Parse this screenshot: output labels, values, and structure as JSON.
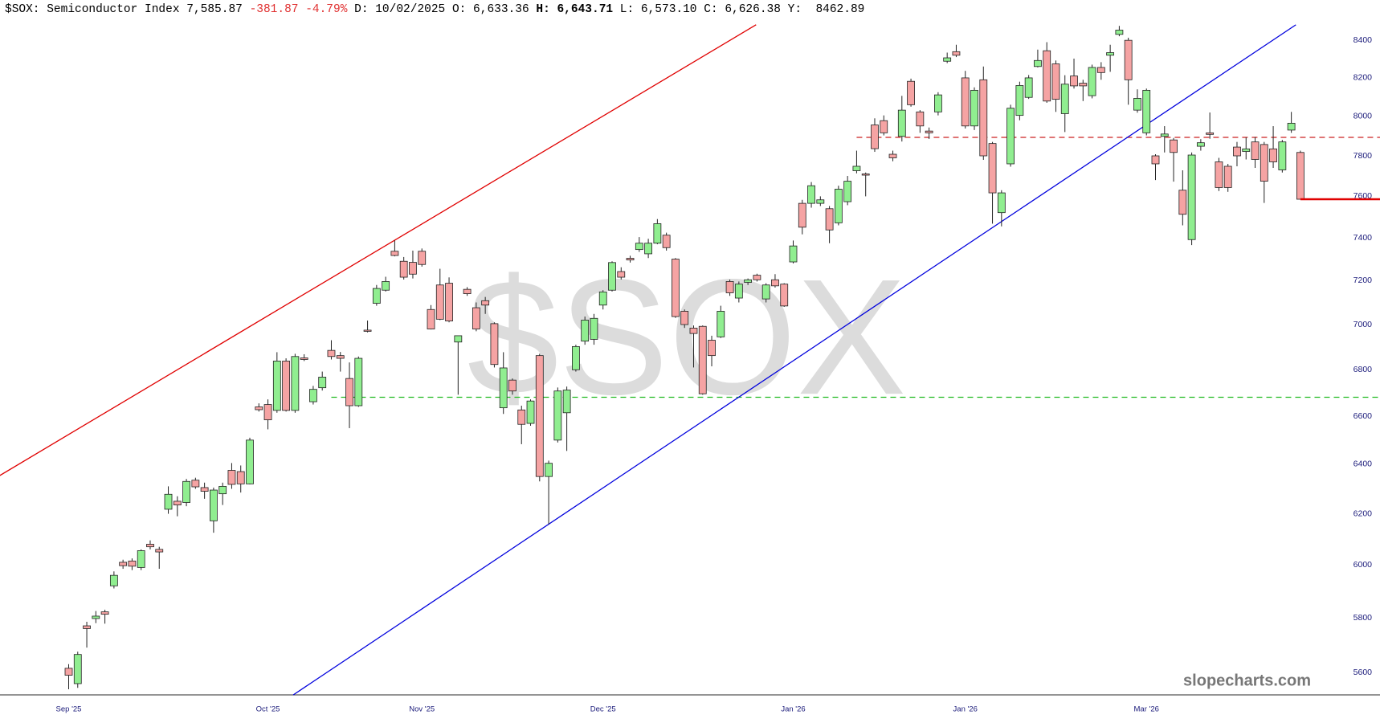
{
  "chart_data": {
    "type": "candlestick",
    "header": [
      {
        "text": "$SOX: Semiconductor Index",
        "color": "#000000",
        "bold": false
      },
      {
        "text": "7,585.87",
        "color": "#000000",
        "bold": false
      },
      {
        "text": "-381.87",
        "color": "#e03030",
        "bold": false
      },
      {
        "text": "-4.79%",
        "color": "#e03030",
        "bold": false
      },
      {
        "text": "D: 10/02/2025",
        "color": "#000000",
        "bold": false
      },
      {
        "text": "O: 6,633.36",
        "color": "#000000",
        "bold": false
      },
      {
        "text": "H: 6,643.71",
        "color": "#000000",
        "bold": true
      },
      {
        "text": "L: 6,573.10",
        "color": "#000000",
        "bold": false
      },
      {
        "text": "C: 6,626.38",
        "color": "#000000",
        "bold": false
      },
      {
        "text": "Y:  8462.89",
        "color": "#000000",
        "bold": false
      }
    ],
    "watermark": "$SOX",
    "brand": "slopecharts.com",
    "categories": [
      "Sep '25",
      null,
      null,
      null,
      null,
      null,
      null,
      null,
      null,
      null,
      null,
      null,
      null,
      null,
      null,
      null,
      null,
      null,
      null,
      null,
      null,
      null,
      "Oct '25",
      null,
      null,
      null,
      null,
      null,
      null,
      null,
      null,
      null,
      null,
      null,
      null,
      null,
      null,
      null,
      null,
      "Nov '25",
      null,
      null,
      null,
      null,
      null,
      null,
      null,
      null,
      null,
      null,
      null,
      null,
      null,
      null,
      null,
      null,
      null,
      null,
      null,
      "Dec '25",
      null,
      null,
      null,
      null,
      null,
      null,
      null,
      null,
      null,
      null,
      null,
      null,
      null,
      null,
      null,
      null,
      null,
      null,
      null,
      null,
      "Jan '26",
      null,
      null,
      null,
      null,
      null,
      null,
      null,
      null,
      null,
      null,
      null,
      null,
      null,
      null,
      null,
      null,
      null,
      null,
      "Jan '26",
      null,
      null,
      null,
      null,
      null,
      null,
      null,
      null,
      null,
      null,
      null,
      null,
      null,
      null,
      null,
      null,
      null,
      null,
      null,
      "Mar '26",
      null,
      null,
      null,
      null,
      null,
      null,
      null,
      null,
      null,
      null,
      null,
      null,
      null,
      null,
      null,
      null,
      null
    ],
    "open": [
      5615,
      5560,
      5770,
      5797,
      5822,
      5920,
      6010,
      6015,
      5990,
      6080,
      6060,
      6218,
      6250,
      6245,
      6335,
      6305,
      6172,
      6280,
      6375,
      6370,
      6320,
      6640,
      6650,
      6625,
      6838,
      6625,
      6852,
      6662,
      6722,
      6885,
      6862,
      6762,
      6645,
      6975,
      7096,
      7156,
      7337,
      7290,
      7285,
      7337,
      7068,
      7180,
      7188,
      6922,
      7160,
      7076,
      7108,
      7004,
      6636,
      6755,
      6627,
      6570,
      6862,
      6350,
      6500,
      6615,
      6800,
      6926,
      6934,
      7088,
      7156,
      7242,
      7304,
      7345,
      7325,
      7375,
      7413,
      7300,
      7060,
      6984,
      6992,
      6930,
      6945,
      7196,
      7120,
      7192,
      7225,
      7116,
      7204,
      7184,
      7287,
      7566,
      7566,
      7566,
      7540,
      7472,
      7574,
      7726,
      7710,
      7956,
      7978,
      7808,
      7898,
      8182,
      8023,
      7925,
      8023,
      8288,
      8339,
      8200,
      7951,
      8190,
      7862,
      7521,
      7760,
      8005,
      8098,
      8260,
      8344,
      8274,
      8014,
      8210,
      8172,
      8107,
      8255,
      8320,
      8432,
      8400,
      8032,
      7916,
      7800,
      7898,
      7880,
      7630,
      7392,
      7848,
      7916,
      7770,
      7748,
      7844,
      7822,
      7870,
      7857,
      7835,
      7730,
      7930,
      7817
    ],
    "high": [
      5630,
      5675,
      5785,
      5825,
      5830,
      5975,
      6020,
      6025,
      6060,
      6095,
      6070,
      6310,
      6270,
      6340,
      6345,
      6325,
      6305,
      6325,
      6405,
      6395,
      6510,
      6655,
      6672,
      6877,
      6850,
      6870,
      6868,
      6730,
      6792,
      6930,
      6878,
      6832,
      6858,
      7018,
      7180,
      7218,
      7388,
      7310,
      7340,
      7350,
      7088,
      7255,
      7215,
      6950,
      7170,
      7100,
      7125,
      7010,
      6877,
      6762,
      6645,
      6672,
      6870,
      6415,
      6723,
      6727,
      6910,
      7036,
      7048,
      7156,
      7290,
      7262,
      7316,
      7404,
      7396,
      7490,
      7425,
      7305,
      7068,
      6996,
      6996,
      6950,
      7085,
      7205,
      7196,
      7210,
      7232,
      7188,
      7230,
      7188,
      7388,
      7583,
      7670,
      7600,
      7553,
      7652,
      7700,
      7826,
      7717,
      7990,
      8005,
      7826,
      8106,
      8196,
      8032,
      7943,
      8125,
      8334,
      8376,
      8237,
      8150,
      8260,
      7870,
      7630,
      8060,
      8180,
      8215,
      8350,
      8390,
      8292,
      8214,
      8302,
      8190,
      8270,
      8283,
      8376,
      8478,
      8414,
      8140,
      8144,
      7808,
      7950,
      7890,
      7728,
      7817,
      7884,
      8020,
      7790,
      7760,
      7870,
      7893,
      7895,
      7870,
      7950,
      7880,
      8023,
      7826
    ],
    "low": [
      5540,
      5545,
      5690,
      5780,
      5778,
      5910,
      5985,
      5980,
      5980,
      6060,
      5985,
      6200,
      6190,
      6230,
      6300,
      6260,
      6125,
      6235,
      6300,
      6285,
      6318,
      6620,
      6545,
      6615,
      6620,
      6615,
      6838,
      6650,
      6710,
      6845,
      6792,
      6550,
      6640,
      6965,
      7085,
      7150,
      7313,
      7205,
      7210,
      7265,
      6978,
      7020,
      7010,
      6692,
      7130,
      6970,
      7048,
      6810,
      6610,
      6692,
      6483,
      6560,
      6330,
      6158,
      6490,
      6455,
      6792,
      6910,
      6910,
      7068,
      7150,
      7205,
      7284,
      7334,
      7305,
      7370,
      7340,
      7030,
      6985,
      6810,
      6692,
      6815,
      6940,
      7130,
      7100,
      7180,
      7196,
      7100,
      7168,
      7080,
      7280,
      7417,
      7545,
      7553,
      7375,
      7460,
      7557,
      7713,
      7600,
      7820,
      7903,
      7773,
      7872,
      8050,
      7916,
      7885,
      8005,
      8278,
      8310,
      7938,
      7930,
      7780,
      7468,
      7455,
      7746,
      7980,
      8090,
      8255,
      8070,
      8023,
      7920,
      8144,
      8079,
      8093,
      8190,
      8232,
      8422,
      8060,
      8019,
      7903,
      7680,
      7817,
      7672,
      7460,
      7366,
      7826,
      7886,
      7626,
      7622,
      7748,
      7782,
      7740,
      7568,
      7740,
      7717,
      7916,
      7586
    ],
    "close": [
      5590,
      5665,
      5760,
      5806,
      5813,
      5960,
      5997,
      5995,
      6055,
      6070,
      6050,
      6278,
      6235,
      6330,
      6308,
      6290,
      6295,
      6310,
      6318,
      6320,
      6500,
      6628,
      6585,
      6838,
      6625,
      6858,
      6845,
      6715,
      6768,
      6858,
      6850,
      6645,
      6850,
      6972,
      7164,
      7196,
      7317,
      7216,
      7230,
      7275,
      6980,
      7024,
      7016,
      6950,
      7140,
      6980,
      7088,
      6823,
      6808,
      6708,
      6566,
      6665,
      6350,
      6404,
      6708,
      6712,
      6902,
      7020,
      7028,
      7148,
      7284,
      7216,
      7296,
      7375,
      7375,
      7468,
      7354,
      7036,
      7000,
      6960,
      6696,
      6862,
      7060,
      7144,
      7184,
      7204,
      7204,
      7180,
      7176,
      7084,
      7362,
      7451,
      7652,
      7583,
      7438,
      7635,
      7674,
      7748,
      7705,
      7836,
      7916,
      7790,
      8032,
      8060,
      7951,
      7916,
      8111,
      8306,
      8320,
      7951,
      8135,
      7800,
      7617,
      7617,
      8042,
      8160,
      8200,
      8292,
      8079,
      8088,
      8167,
      8158,
      8158,
      8255,
      8228,
      8334,
      8455,
      8190,
      8093,
      8135,
      7760,
      7910,
      7817,
      7513,
      7804,
      7866,
      7908,
      7643,
      7643,
      7800,
      7835,
      7782,
      7674,
      7770,
      7870,
      7965,
      7585.87
    ],
    "up_color": "#90ee90",
    "down_color": "#f5a3a3",
    "log_scale": true,
    "grid": false,
    "ylim": [
      5520,
      8620
    ],
    "yticks": [
      5600,
      5800,
      6000,
      6200,
      6400,
      6600,
      6800,
      7000,
      7200,
      7400,
      7600,
      7800,
      8000,
      8200,
      8400
    ],
    "levels": [
      {
        "value": 6681,
        "color": "#22bb22",
        "from": 29
      },
      {
        "value": 7893,
        "color": "#cc2222",
        "from": 87
      }
    ],
    "trendlines": [
      {
        "color": "#e00000",
        "points": [
          [
            -7.6,
            6354
          ],
          [
            75.9,
            8484
          ]
        ]
      },
      {
        "color": "#0000dd",
        "points": [
          [
            24.8,
            5520
          ],
          [
            135.5,
            8484
          ]
        ]
      }
    ],
    "last_price_color": "#e00000"
  }
}
